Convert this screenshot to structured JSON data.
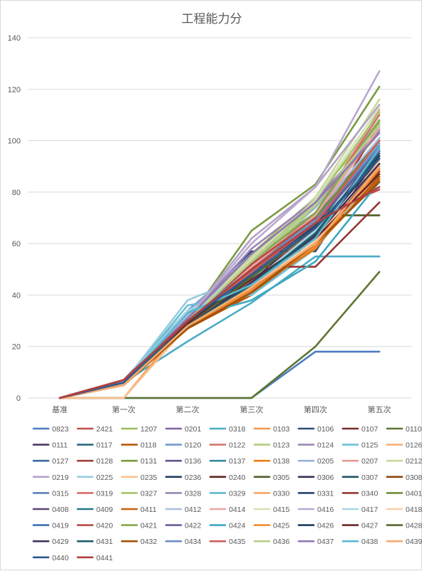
{
  "chart_data": {
    "type": "line",
    "title": "工程能力分",
    "categories": [
      "基准",
      "第一次",
      "第二次",
      "第三次",
      "第四次",
      "第五次"
    ],
    "ylim": [
      0,
      140
    ],
    "yticks": [
      0,
      20,
      40,
      60,
      80,
      100,
      120,
      140
    ],
    "grid": true,
    "legend_position": "bottom",
    "series": [
      {
        "name": "0823",
        "color": "#4a7bc4",
        "values": [
          0,
          0,
          0,
          0,
          18,
          18
        ]
      },
      {
        "name": "2421",
        "color": "#c0504d",
        "values": [
          0,
          6,
          29,
          49,
          70,
          93
        ]
      },
      {
        "name": "1207",
        "color": "#9bbb59",
        "values": [
          0,
          6,
          30,
          56,
          78,
          107
        ]
      },
      {
        "name": "0201",
        "color": "#8064a2",
        "values": [
          0,
          7,
          31,
          54,
          71,
          98
        ]
      },
      {
        "name": "0318",
        "color": "#4bacc6",
        "values": [
          0,
          6,
          22,
          37,
          55,
          55
        ]
      },
      {
        "name": "0103",
        "color": "#f79646",
        "values": [
          0,
          0,
          30,
          44,
          60,
          85
        ]
      },
      {
        "name": "0106",
        "color": "#2c4d75",
        "values": [
          0,
          6,
          30,
          57,
          57,
          95
        ]
      },
      {
        "name": "0107",
        "color": "#772c2a",
        "values": [
          0,
          7,
          29,
          48,
          63,
          90
        ]
      },
      {
        "name": "0110",
        "color": "#5f7530",
        "values": [
          0,
          0,
          0,
          0,
          20,
          49
        ]
      },
      {
        "name": "0111",
        "color": "#4d3b62",
        "values": [
          0,
          6,
          28,
          46,
          67,
          92
        ]
      },
      {
        "name": "0117",
        "color": "#276a7c",
        "values": [
          0,
          6,
          28,
          44,
          65,
          96
        ]
      },
      {
        "name": "0118",
        "color": "#b65708",
        "values": [
          0,
          5,
          27,
          40,
          60,
          86
        ]
      },
      {
        "name": "0120",
        "color": "#729aca",
        "values": [
          0,
          7,
          34,
          55,
          72,
          104
        ]
      },
      {
        "name": "0122",
        "color": "#d2776b",
        "values": [
          0,
          6,
          30,
          50,
          70,
          96
        ]
      },
      {
        "name": "0123",
        "color": "#b2cc7d",
        "values": [
          0,
          6,
          30,
          52,
          74,
          103
        ]
      },
      {
        "name": "0124",
        "color": "#9c86b8",
        "values": [
          0,
          7,
          31,
          53,
          72,
          100
        ]
      },
      {
        "name": "0125",
        "color": "#6ac0d4",
        "values": [
          0,
          6,
          36,
          40,
          58,
          88
        ]
      },
      {
        "name": "0126",
        "color": "#f9b076",
        "values": [
          0,
          5,
          28,
          44,
          60,
          87
        ]
      },
      {
        "name": "0127",
        "color": "#3a6a9e",
        "values": [
          0,
          6,
          30,
          48,
          66,
          94
        ]
      },
      {
        "name": "0128",
        "color": "#a33e3a",
        "values": [
          0,
          7,
          29,
          46,
          65,
          106
        ]
      },
      {
        "name": "0131",
        "color": "#7b9a42",
        "values": [
          0,
          6,
          30,
          65,
          83,
          121
        ]
      },
      {
        "name": "0136",
        "color": "#66518a",
        "values": [
          0,
          6,
          30,
          47,
          62,
          88
        ]
      },
      {
        "name": "0137",
        "color": "#33899e",
        "values": [
          0,
          6,
          29,
          46,
          64,
          97
        ]
      },
      {
        "name": "0138",
        "color": "#e97d12",
        "values": [
          0,
          5,
          28,
          42,
          58,
          90
        ]
      },
      {
        "name": "0205",
        "color": "#95b3d7",
        "values": [
          0,
          7,
          33,
          56,
          74,
          108
        ]
      },
      {
        "name": "0207",
        "color": "#e59c92",
        "values": [
          0,
          6,
          30,
          52,
          71,
          112
        ]
      },
      {
        "name": "0212",
        "color": "#c7d99d",
        "values": [
          0,
          6,
          30,
          55,
          78,
          116
        ]
      },
      {
        "name": "0219",
        "color": "#b3a2c8",
        "values": [
          0,
          7,
          31,
          62,
          82,
          114
        ]
      },
      {
        "name": "0225",
        "color": "#93cddd",
        "values": [
          0,
          6,
          38,
          48,
          70,
          100
        ]
      },
      {
        "name": "0235",
        "color": "#fac08f",
        "values": [
          0,
          0,
          28,
          44,
          60,
          90
        ]
      },
      {
        "name": "0236",
        "color": "#1f3a5c",
        "values": [
          0,
          6,
          29,
          50,
          68,
          101
        ]
      },
      {
        "name": "0240",
        "color": "#5c2220",
        "values": [
          0,
          7,
          29,
          47,
          63,
          89
        ]
      },
      {
        "name": "0305",
        "color": "#4b5d26",
        "values": [
          0,
          6,
          27,
          50,
          71,
          71
        ]
      },
      {
        "name": "0306",
        "color": "#3b2c4d",
        "values": [
          0,
          6,
          28,
          46,
          64,
          93
        ]
      },
      {
        "name": "0307",
        "color": "#1e5260",
        "values": [
          0,
          6,
          28,
          45,
          64,
          94
        ]
      },
      {
        "name": "0308",
        "color": "#8c4305",
        "values": [
          0,
          5,
          27,
          42,
          61,
          88
        ]
      },
      {
        "name": "0315",
        "color": "#5a82b8",
        "values": [
          0,
          6,
          31,
          51,
          70,
          99
        ]
      },
      {
        "name": "0319",
        "color": "#d66d69",
        "values": [
          0,
          6,
          30,
          50,
          72,
          110
        ]
      },
      {
        "name": "0327",
        "color": "#a6c36f",
        "values": [
          0,
          6,
          30,
          54,
          76,
          111
        ]
      },
      {
        "name": "0328",
        "color": "#9a85b6",
        "values": [
          0,
          7,
          31,
          58,
          77,
          104
        ]
      },
      {
        "name": "0329",
        "color": "#5fb7cf",
        "values": [
          0,
          6,
          33,
          46,
          68,
          99
        ]
      },
      {
        "name": "0330",
        "color": "#f8a562",
        "values": [
          0,
          5,
          28,
          44,
          62,
          91
        ]
      },
      {
        "name": "0331",
        "color": "#27446b",
        "values": [
          0,
          6,
          30,
          49,
          67,
          96
        ]
      },
      {
        "name": "0340",
        "color": "#953734",
        "values": [
          0,
          7,
          29,
          51,
          51,
          76
        ]
      },
      {
        "name": "0401",
        "color": "#6f8f37",
        "values": [
          0,
          6,
          29,
          52,
          70,
          100
        ]
      },
      {
        "name": "0408",
        "color": "#5a466f",
        "values": [
          0,
          6,
          29,
          48,
          66,
          95
        ]
      },
      {
        "name": "0409",
        "color": "#237a8c",
        "values": [
          0,
          6,
          29,
          47,
          66,
          97
        ]
      },
      {
        "name": "0411",
        "color": "#c4620a",
        "values": [
          0,
          5,
          27,
          41,
          59,
          85
        ]
      },
      {
        "name": "0412",
        "color": "#a9c0de",
        "values": [
          0,
          6,
          32,
          53,
          72,
          101
        ]
      },
      {
        "name": "0414",
        "color": "#eaa8a0",
        "values": [
          0,
          6,
          30,
          51,
          71,
          105
        ]
      },
      {
        "name": "0415",
        "color": "#d3e2b0",
        "values": [
          0,
          6,
          30,
          54,
          77,
          113
        ]
      },
      {
        "name": "0416",
        "color": "#baa8cf",
        "values": [
          0,
          7,
          31,
          60,
          82,
          127
        ]
      },
      {
        "name": "0417",
        "color": "#a8d7e4",
        "values": [
          0,
          6,
          34,
          45,
          65,
          98
        ]
      },
      {
        "name": "0418",
        "color": "#fbcfa6",
        "values": [
          0,
          5,
          28,
          43,
          61,
          92
        ]
      },
      {
        "name": "0419",
        "color": "#3f70b0",
        "values": [
          0,
          6,
          30,
          49,
          68,
          97
        ]
      },
      {
        "name": "0420",
        "color": "#b94a47",
        "values": [
          0,
          7,
          30,
          52,
          70,
          81
        ]
      },
      {
        "name": "0421",
        "color": "#86a84d",
        "values": [
          0,
          6,
          30,
          53,
          72,
          108
        ]
      },
      {
        "name": "0422",
        "color": "#725b93",
        "values": [
          0,
          7,
          30,
          50,
          68,
          96
        ]
      },
      {
        "name": "0424",
        "color": "#3fa7c1",
        "values": [
          0,
          6,
          31,
          38,
          53,
          84
        ]
      },
      {
        "name": "0425",
        "color": "#f68b33",
        "values": [
          0,
          5,
          27,
          42,
          59,
          89
        ]
      },
      {
        "name": "0426",
        "color": "#213b5f",
        "values": [
          0,
          6,
          29,
          47,
          66,
          94
        ]
      },
      {
        "name": "0427",
        "color": "#6a2826",
        "values": [
          0,
          7,
          29,
          46,
          62,
          87
        ]
      },
      {
        "name": "0428",
        "color": "#55692c",
        "values": [
          0,
          6,
          28,
          47,
          66,
          93
        ]
      },
      {
        "name": "0429",
        "color": "#433357",
        "values": [
          0,
          6,
          28,
          45,
          63,
          91
        ]
      },
      {
        "name": "0431",
        "color": "#1a6070",
        "values": [
          0,
          6,
          28,
          44,
          64,
          95
        ]
      },
      {
        "name": "0432",
        "color": "#a15106",
        "values": [
          0,
          5,
          27,
          41,
          60,
          84
        ]
      },
      {
        "name": "0434",
        "color": "#6b8ec2",
        "values": [
          0,
          6,
          31,
          50,
          69,
          98
        ]
      },
      {
        "name": "0435",
        "color": "#cf5f5b",
        "values": [
          0,
          6,
          30,
          49,
          68,
          100
        ]
      },
      {
        "name": "0436",
        "color": "#b8d08a",
        "values": [
          0,
          6,
          30,
          53,
          75,
          106
        ]
      },
      {
        "name": "0437",
        "color": "#9178b0",
        "values": [
          0,
          7,
          31,
          56,
          76,
          103
        ]
      },
      {
        "name": "0438",
        "color": "#58b8d2",
        "values": [
          0,
          6,
          33,
          44,
          62,
          97
        ]
      },
      {
        "name": "0439",
        "color": "#f9ab6e",
        "values": [
          0,
          5,
          28,
          43,
          60,
          90
        ]
      },
      {
        "name": "0440",
        "color": "#2f5a8e",
        "values": [
          0,
          6,
          30,
          48,
          66,
          93
        ]
      },
      {
        "name": "0441",
        "color": "#b33f3c",
        "values": [
          0,
          7,
          30,
          50,
          68,
          82
        ]
      }
    ]
  }
}
